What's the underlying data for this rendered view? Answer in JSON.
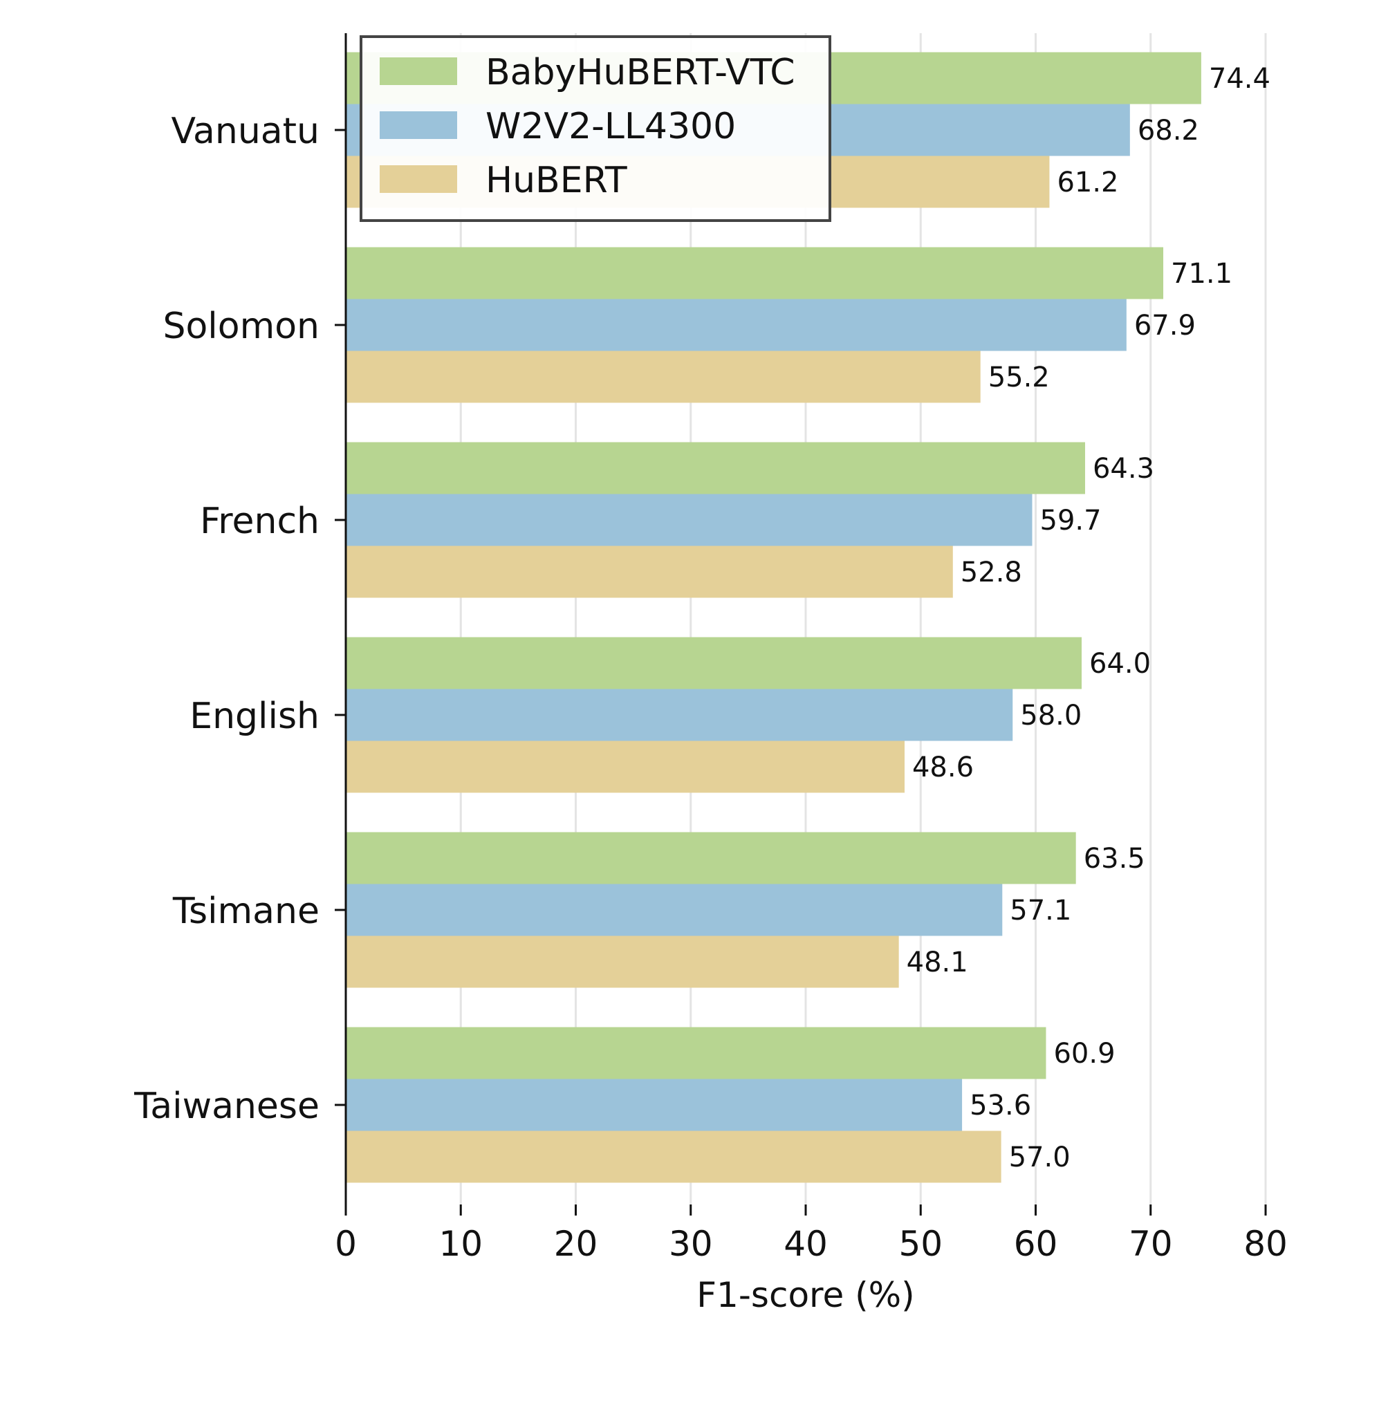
{
  "chart_data": {
    "type": "bar",
    "orientation": "horizontal",
    "categories": [
      "Vanuatu",
      "Solomon",
      "French",
      "English",
      "Tsimane",
      "Taiwanese"
    ],
    "series": [
      {
        "name": "BabyHuBERT-VTC",
        "color": "#b7d591",
        "values": [
          74.4,
          71.1,
          64.3,
          64.0,
          63.5,
          60.9
        ],
        "labels": [
          "74.4",
          "71.1",
          "64.3",
          "64.0",
          "63.5",
          "60.9"
        ]
      },
      {
        "name": "W2V2-LL4300",
        "color": "#9bc2da",
        "values": [
          68.2,
          67.9,
          59.7,
          58.0,
          57.1,
          53.6
        ],
        "labels": [
          "68.2",
          "67.9",
          "59.7",
          "58.0",
          "57.1",
          "53.6"
        ]
      },
      {
        "name": "HuBERT",
        "color": "#e4d098",
        "values": [
          61.2,
          55.2,
          52.8,
          48.6,
          48.1,
          57.0
        ],
        "labels": [
          "61.2",
          "55.2",
          "52.8",
          "48.6",
          "48.1",
          "57.0"
        ]
      }
    ],
    "xlabel": "F1-score (%)",
    "ylabel": "",
    "title": "",
    "xlim": [
      0,
      80
    ],
    "xticks": [
      "0",
      "10",
      "20",
      "30",
      "40",
      "50",
      "60",
      "70",
      "80"
    ],
    "grid": "vertical",
    "legend_position": "top-left"
  }
}
